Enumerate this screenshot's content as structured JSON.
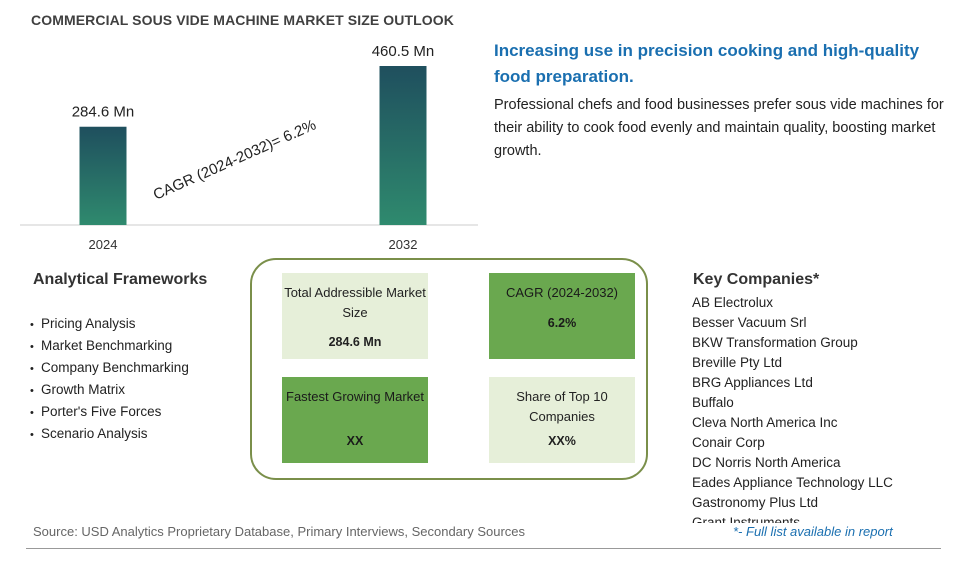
{
  "page": {
    "title": "COMMERCIAL SOUS VIDE MACHINE MARKET SIZE OUTLOOK"
  },
  "chart_data": {
    "type": "bar",
    "categories": [
      "2024",
      "2032"
    ],
    "values": [
      284.6,
      460.5
    ],
    "value_labels": [
      "284.6 Mn",
      "460.5 Mn"
    ],
    "unit": "Mn",
    "annotation": "CAGR (2024-2032)=   6.2%",
    "ylim": [
      0,
      460.5
    ],
    "grid": false,
    "legend": "none",
    "colors": {
      "bar_top": "#1f4f5e",
      "bar_bottom": "#2f8a6e",
      "axis": "#cccccc"
    }
  },
  "highlight": {
    "headline": "Increasing use in precision cooking and high-quality food preparation.",
    "description": "Professional chefs and food businesses prefer sous vide machines for their ability to cook food evenly and maintain quality, boosting market growth."
  },
  "frameworks": {
    "title": "Analytical Frameworks",
    "items": [
      "Pricing Analysis",
      "Market Benchmarking",
      "Company Benchmarking",
      "Growth Matrix",
      "Porter's Five Forces",
      "Scenario Analysis"
    ]
  },
  "metrics": {
    "tiles": [
      {
        "label": "Total Addressible Market Size",
        "value": "284.6 Mn",
        "style": "light"
      },
      {
        "label": "CAGR (2024-2032)",
        "value": "6.2%",
        "style": "dark"
      },
      {
        "label": "Fastest Growing Market",
        "value": "XX",
        "style": "dark"
      },
      {
        "label": "Share of Top 10 Companies",
        "value": "XX%",
        "style": "light"
      }
    ]
  },
  "key_companies": {
    "title": "Key Companies*",
    "items": [
      "AB Electrolux",
      "Besser Vacuum Srl",
      "BKW Transformation Group",
      "Breville Pty Ltd",
      "BRG Appliances Ltd",
      "Buffalo",
      "Cleva North America Inc",
      "Conair Corp",
      "DC Norris North America",
      "Eades Appliance Technology LLC",
      "Gastronomy Plus Ltd",
      "Grant Instruments"
    ]
  },
  "footer": {
    "source": "Source: USD Analytics Proprietary Database, Primary Interviews, Secondary Sources",
    "note": "*- Full list available in report"
  }
}
